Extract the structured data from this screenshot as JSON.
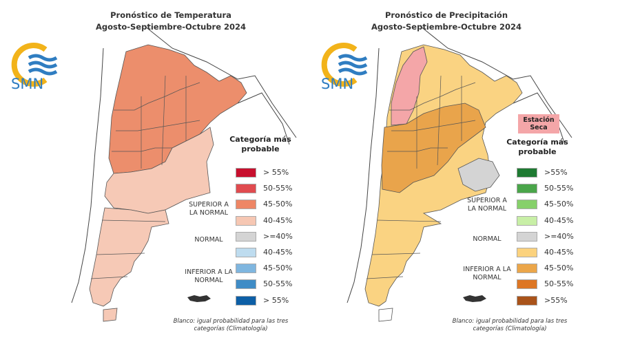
{
  "temperature": {
    "title_line1": "Pronóstico de Temperatura",
    "title_line2": "Agosto-Septiembre-Octubre 2024",
    "logo_text": "SMN",
    "legend_title": "Categoría más probable",
    "groups": {
      "superior": "SUPERIOR A LA NORMAL",
      "normal": "NORMAL",
      "inferior": "INFERIOR A LA NORMAL"
    },
    "legend": [
      {
        "label": "> 55%",
        "color": "#c8102e"
      },
      {
        "label": "50-55%",
        "color": "#e04b4f"
      },
      {
        "label": "45-50%",
        "color": "#ee8665"
      },
      {
        "label": "40-45%",
        "color": "#f6c7b3"
      },
      {
        "label": ">=40%",
        "color": "#d4d4d4"
      },
      {
        "label": "40-45%",
        "color": "#bedcef"
      },
      {
        "label": "45-50%",
        "color": "#7fb6df"
      },
      {
        "label": "50-55%",
        "color": "#3f8cc6"
      },
      {
        "label": "> 55%",
        "color": "#0d5fa6"
      }
    ],
    "note": "Blanco: igual probabilidad para las tres categorías (Climatología)"
  },
  "precipitation": {
    "title_line1": "Pronóstico de Precipitación",
    "title_line2": "Agosto-Septiembre-Octubre 2024",
    "logo_text": "SMN",
    "badge": "Estación Seca",
    "legend_title": "Categoría más probable",
    "groups": {
      "superior": "SUPERIOR A LA NORMAL",
      "normal": "NORMAL",
      "inferior": "INFERIOR A LA NORMAL"
    },
    "legend": [
      {
        "label": ">55%",
        "color": "#1e7a32"
      },
      {
        "label": "50-55%",
        "color": "#4aa54a"
      },
      {
        "label": "45-50%",
        "color": "#86d06a"
      },
      {
        "label": "40-45%",
        "color": "#c8efa6"
      },
      {
        "label": ">=40%",
        "color": "#d4d4d4"
      },
      {
        "label": "40-45%",
        "color": "#fbd27e"
      },
      {
        "label": "45-50%",
        "color": "#eba64a"
      },
      {
        "label": "50-55%",
        "color": "#dd7624"
      },
      {
        "label": ">55%",
        "color": "#a9531a"
      }
    ],
    "note": "Blanco: igual probabilidad para las tres categorías (Climatología)"
  },
  "colors": {
    "logo_sun": "#f2b31a",
    "logo_blue": "#2f7dc1",
    "temp_north": "#ec8e6c",
    "temp_south": "#f6c9b6",
    "precip_main": "#fad382",
    "precip_dark": "#e9a44b",
    "precip_dry": "#f4a6a8",
    "normal_gray": "#d4d4d4"
  }
}
